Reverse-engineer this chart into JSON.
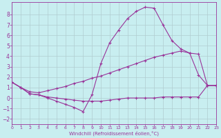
{
  "xlabel": "Windchill (Refroidissement éolien,°C)",
  "bg_color": "#c8eef0",
  "grid_color": "#b0ccd0",
  "line_color": "#993399",
  "xlim": [
    0,
    23
  ],
  "ylim": [
    -2.5,
    9.2
  ],
  "xticks": [
    0,
    1,
    2,
    3,
    4,
    5,
    6,
    7,
    8,
    9,
    10,
    11,
    12,
    13,
    14,
    15,
    16,
    17,
    18,
    19,
    20,
    21,
    22,
    23
  ],
  "yticks": [
    -2,
    -1,
    0,
    1,
    2,
    3,
    4,
    5,
    6,
    7,
    8
  ],
  "s1_x": [
    0,
    1,
    2,
    3,
    4,
    5,
    6,
    7,
    8,
    9,
    10,
    11,
    12,
    13,
    14,
    15,
    16,
    17,
    18,
    19,
    20,
    21,
    22,
    23
  ],
  "s1_y": [
    1.5,
    1.0,
    0.4,
    0.3,
    0.1,
    0.0,
    -0.1,
    -0.2,
    -0.3,
    -0.3,
    -0.3,
    -0.2,
    -0.1,
    0.0,
    0.0,
    0.0,
    0.0,
    0.1,
    0.1,
    0.1,
    0.1,
    0.1,
    1.2,
    1.2
  ],
  "s2_x": [
    0,
    1,
    2,
    3,
    4,
    5,
    6,
    7,
    8,
    9,
    10,
    11,
    12,
    13,
    14,
    15,
    16,
    17,
    18,
    19,
    20,
    21,
    22,
    23
  ],
  "s2_y": [
    1.5,
    1.0,
    0.6,
    0.5,
    0.7,
    0.9,
    1.1,
    1.4,
    1.6,
    1.9,
    2.1,
    2.4,
    2.7,
    3.0,
    3.3,
    3.6,
    3.9,
    4.1,
    4.3,
    4.5,
    4.3,
    4.2,
    1.2,
    1.2
  ],
  "s3_x": [
    0,
    1,
    2,
    3,
    4,
    5,
    6,
    7,
    8,
    9,
    10,
    11,
    12,
    13,
    14,
    15,
    16,
    17,
    18,
    19,
    20,
    21,
    22,
    23
  ],
  "s3_y": [
    1.5,
    1.0,
    0.4,
    0.3,
    0.0,
    -0.3,
    -0.6,
    -0.9,
    -1.3,
    0.3,
    3.3,
    5.3,
    6.5,
    7.6,
    8.3,
    8.7,
    8.6,
    7.0,
    5.5,
    4.7,
    4.3,
    2.2,
    1.2,
    1.2
  ]
}
